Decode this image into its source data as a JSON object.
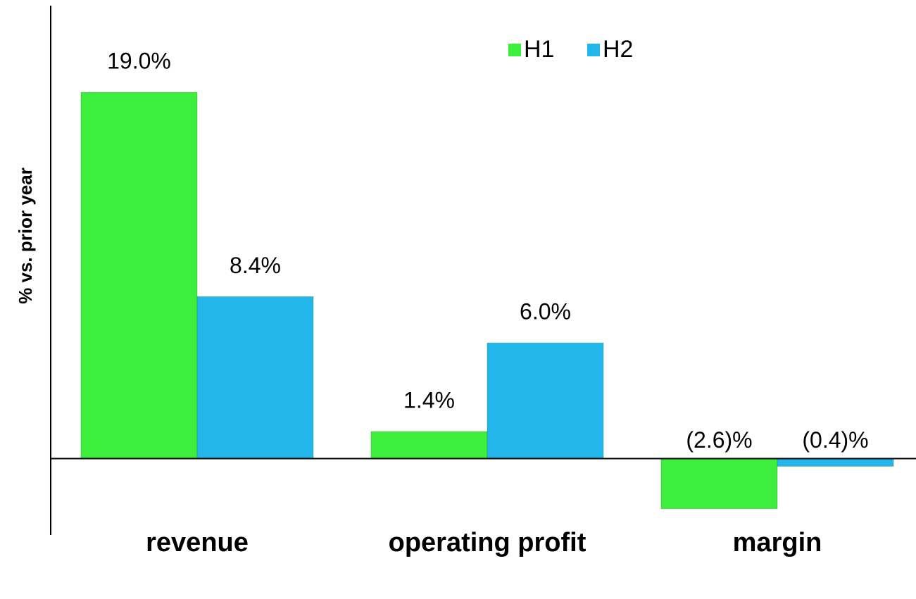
{
  "chart_data": {
    "type": "bar",
    "y_axis_label": "% vs. prior year",
    "categories": [
      "revenue",
      "operating profit",
      "margin"
    ],
    "series": [
      {
        "name": "H1",
        "color": "#3dee3d",
        "values": [
          19.0,
          1.4,
          -2.6
        ],
        "value_labels": [
          "19.0%",
          "1.4%",
          "(2.6)%"
        ]
      },
      {
        "name": "H2",
        "color": "#22b6ea",
        "values": [
          8.4,
          6.0,
          -0.4
        ],
        "value_labels": [
          "8.4%",
          "6.0%",
          "(0.4)%"
        ]
      }
    ],
    "ylim": [
      -4,
      23.5
    ],
    "legend": "top"
  }
}
